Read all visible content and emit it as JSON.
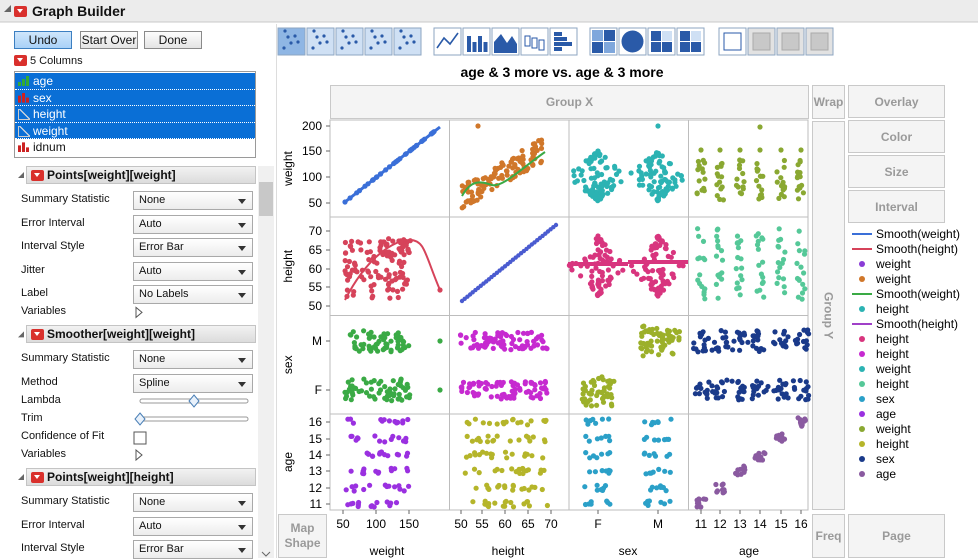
{
  "header": {
    "title": "Graph Builder"
  },
  "buttons": [
    "Undo",
    "Start Over",
    "Done"
  ],
  "columns": {
    "title": "5 Columns",
    "items": [
      {
        "name": "age",
        "selected": true,
        "icon": "continuous"
      },
      {
        "name": "sex",
        "selected": true,
        "icon": "nominal"
      },
      {
        "name": "height",
        "selected": true,
        "icon": "continuous-alt"
      },
      {
        "name": "weight",
        "selected": true,
        "icon": "continuous-alt"
      },
      {
        "name": "idnum",
        "selected": false,
        "icon": "nominal"
      }
    ]
  },
  "sections": [
    {
      "title": "Points[weight][weight]",
      "rows": [
        {
          "label": "Summary Statistic",
          "control": "combo",
          "value": "None"
        },
        {
          "label": "Error Interval",
          "control": "combo",
          "value": "Auto"
        },
        {
          "label": "Interval Style",
          "control": "combo",
          "value": "Error Bar"
        },
        {
          "label": "Jitter",
          "control": "combo",
          "value": "Auto"
        },
        {
          "label": "Label",
          "control": "combo",
          "value": "No Labels"
        },
        {
          "label": "Variables",
          "control": "disclosure"
        }
      ]
    },
    {
      "title": "Smoother[weight][weight]",
      "rows": [
        {
          "label": "Summary Statistic",
          "control": "combo",
          "value": "None"
        },
        {
          "label": "Method",
          "control": "combo",
          "value": "Spline"
        },
        {
          "label": "Lambda",
          "control": "slider"
        },
        {
          "label": "Trim",
          "control": "slider"
        },
        {
          "label": "Confidence of Fit",
          "control": "checkbox"
        },
        {
          "label": "Variables",
          "control": "disclosure"
        }
      ]
    },
    {
      "title": "Points[weight][height]",
      "rows": [
        {
          "label": "Summary Statistic",
          "control": "combo",
          "value": "None"
        },
        {
          "label": "Error Interval",
          "control": "combo",
          "value": "Auto"
        },
        {
          "label": "Interval Style",
          "control": "combo",
          "value": "Error Bar"
        }
      ]
    }
  ],
  "graph": {
    "title": "age & 3 more vs. age & 3 more",
    "zones": {
      "group_x": "Group X",
      "wrap": "Wrap",
      "overlay": "Overlay",
      "color": "Color",
      "size": "Size",
      "interval": "Interval",
      "group_y": "Group Y",
      "map_shape": "Map Shape",
      "freq": "Freq",
      "page": "Page"
    },
    "y_axes": [
      {
        "title": "weight",
        "ticks": [
          "200",
          "150",
          "100",
          "50"
        ]
      },
      {
        "title": "height",
        "ticks": [
          "70",
          "65",
          "60",
          "55",
          "50"
        ]
      },
      {
        "title": "sex",
        "ticks": [
          "M",
          "F"
        ]
      },
      {
        "title": "age",
        "ticks": [
          "16",
          "15",
          "14",
          "13",
          "12",
          "11"
        ]
      }
    ],
    "x_axes": [
      {
        "title": "weight",
        "ticks": [
          "50",
          "100",
          "150"
        ]
      },
      {
        "title": "height",
        "ticks": [
          "50",
          "55",
          "60",
          "65",
          "70"
        ]
      },
      {
        "title": "sex",
        "ticks": [
          "F",
          "M"
        ]
      },
      {
        "title": "age",
        "ticks": [
          "11",
          "12",
          "13",
          "14",
          "15",
          "16"
        ]
      }
    ],
    "legend": [
      {
        "label": "Smooth(weight)",
        "marker": "line",
        "color": "#3a6fd8"
      },
      {
        "label": "Smooth(height)",
        "marker": "line",
        "color": "#d6435a"
      },
      {
        "label": "weight",
        "marker": "dot",
        "color": "#8a3bd6"
      },
      {
        "label": "weight",
        "marker": "dot",
        "color": "#d0772a"
      },
      {
        "label": "Smooth(weight)",
        "marker": "line",
        "color": "#3aaa45"
      },
      {
        "label": "height",
        "marker": "dot",
        "color": "#2cb3b3"
      },
      {
        "label": "Smooth(height)",
        "marker": "line",
        "color": "#a040c8"
      },
      {
        "label": "height",
        "marker": "dot",
        "color": "#d8357e"
      },
      {
        "label": "height",
        "marker": "dot",
        "color": "#c62ad0"
      },
      {
        "label": "weight",
        "marker": "dot",
        "color": "#2cb3b3"
      },
      {
        "label": "height",
        "marker": "dot",
        "color": "#55c898"
      },
      {
        "label": "sex",
        "marker": "dot",
        "color": "#2ba0c8"
      },
      {
        "label": "age",
        "marker": "dot",
        "color": "#9a30e0"
      },
      {
        "label": "weight",
        "marker": "dot",
        "color": "#8aa832"
      },
      {
        "label": "height",
        "marker": "dot",
        "color": "#b5b52a"
      },
      {
        "label": "sex",
        "marker": "dot",
        "color": "#1a3a8a"
      },
      {
        "label": "age",
        "marker": "dot",
        "color": "#8a5aa0"
      }
    ]
  }
}
